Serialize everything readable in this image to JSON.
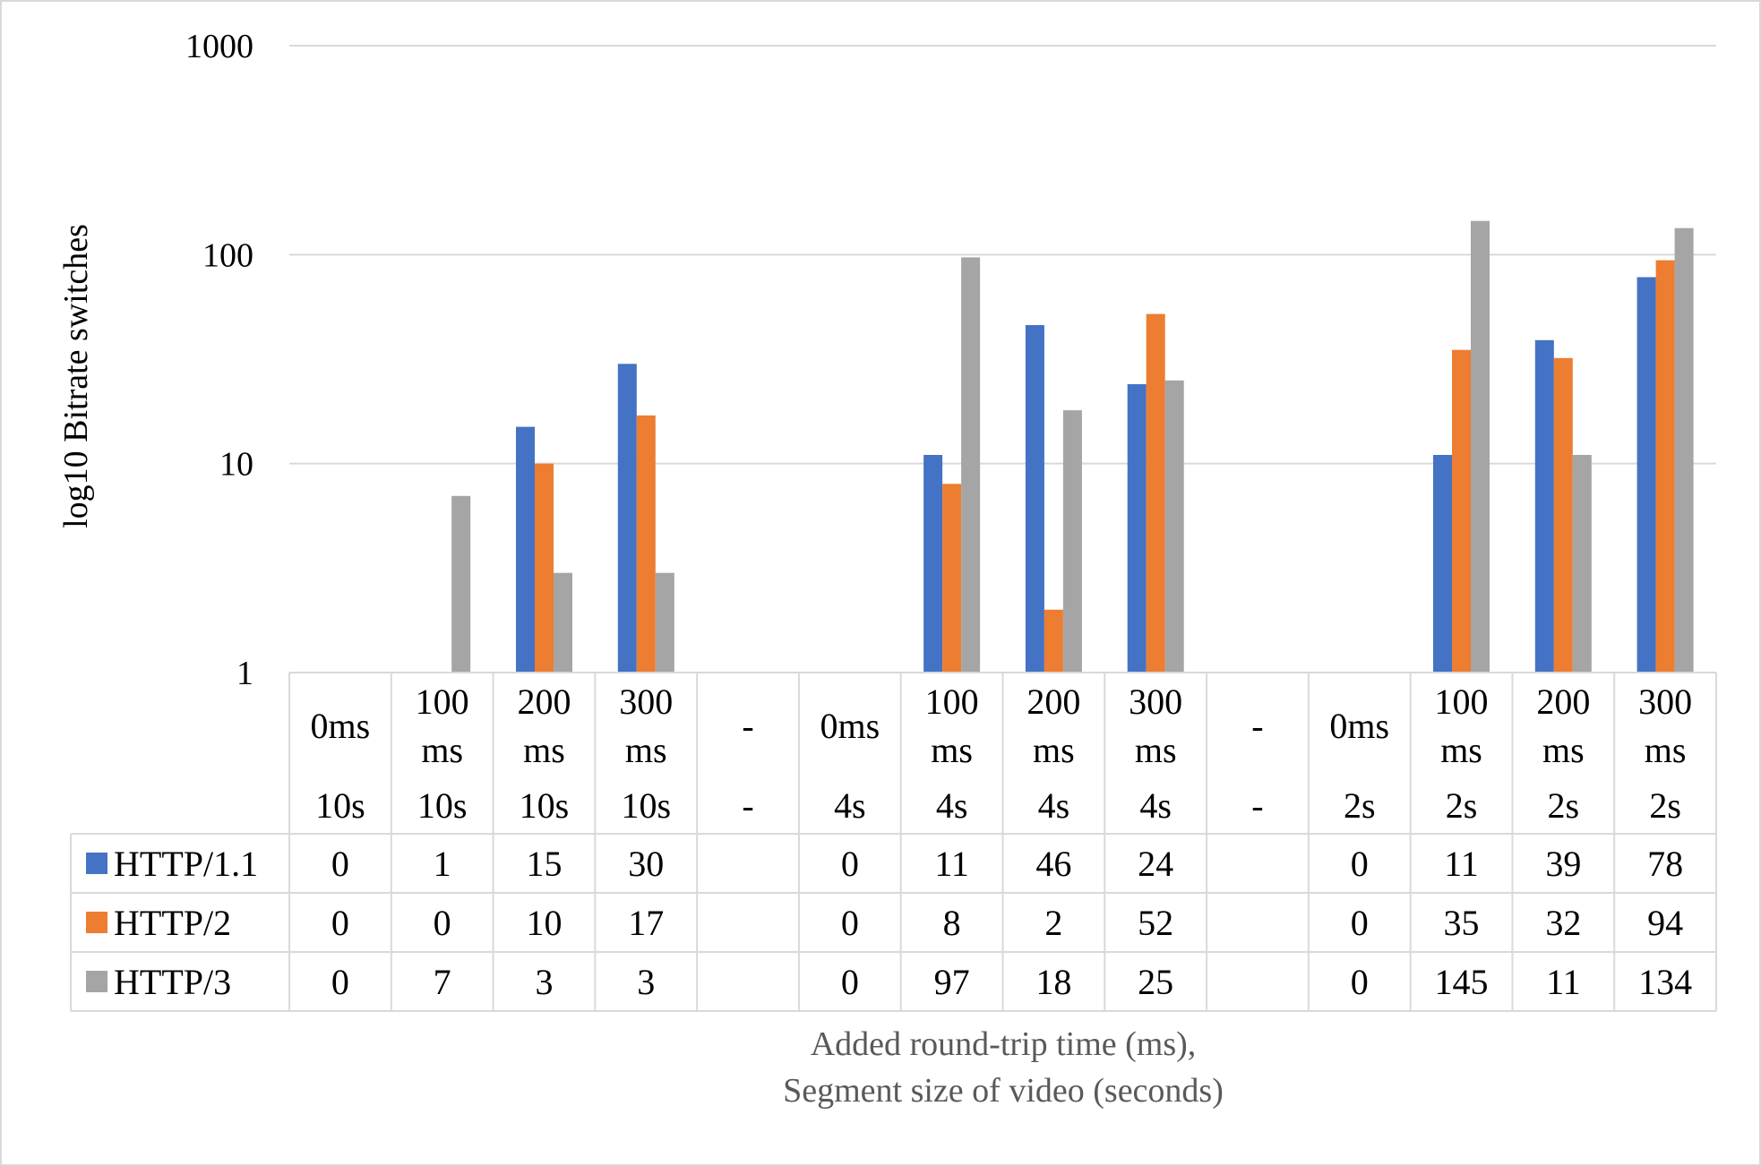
{
  "chart_data": {
    "type": "bar",
    "yscale": "log",
    "ylabel": "log10 Bitrate switches",
    "xlabel_lines": [
      "Added round-trip time (ms),",
      "Segment size of video (seconds)"
    ],
    "ylim": [
      1,
      1000
    ],
    "ytick_labels": [
      "1",
      "10",
      "100",
      "1000"
    ],
    "grid": true,
    "legend_placement": "data-table",
    "categories": [
      {
        "rtt": [
          "0ms"
        ],
        "seg": "10s"
      },
      {
        "rtt": [
          "100",
          "ms"
        ],
        "seg": "10s"
      },
      {
        "rtt": [
          "200",
          "ms"
        ],
        "seg": "10s"
      },
      {
        "rtt": [
          "300",
          "ms"
        ],
        "seg": "10s"
      },
      {
        "rtt": [
          "-"
        ],
        "seg": "-"
      },
      {
        "rtt": [
          "0ms"
        ],
        "seg": "4s"
      },
      {
        "rtt": [
          "100",
          "ms"
        ],
        "seg": "4s"
      },
      {
        "rtt": [
          "200",
          "ms"
        ],
        "seg": "4s"
      },
      {
        "rtt": [
          "300",
          "ms"
        ],
        "seg": "4s"
      },
      {
        "rtt": [
          "-"
        ],
        "seg": "-"
      },
      {
        "rtt": [
          "0ms"
        ],
        "seg": "2s"
      },
      {
        "rtt": [
          "100",
          "ms"
        ],
        "seg": "2s"
      },
      {
        "rtt": [
          "200",
          "ms"
        ],
        "seg": "2s"
      },
      {
        "rtt": [
          "300",
          "ms"
        ],
        "seg": "2s"
      }
    ],
    "series": [
      {
        "name": "HTTP/1.1",
        "color": "#4472C4",
        "values": [
          0,
          1,
          15,
          30,
          null,
          0,
          11,
          46,
          24,
          null,
          0,
          11,
          39,
          78
        ]
      },
      {
        "name": "HTTP/2",
        "color": "#ED7D31",
        "values": [
          0,
          0,
          10,
          17,
          null,
          0,
          8,
          2,
          52,
          null,
          0,
          35,
          32,
          94
        ]
      },
      {
        "name": "HTTP/3",
        "color": "#A5A5A5",
        "values": [
          0,
          7,
          3,
          3,
          null,
          0,
          97,
          18,
          25,
          null,
          0,
          145,
          11,
          134
        ]
      }
    ]
  }
}
